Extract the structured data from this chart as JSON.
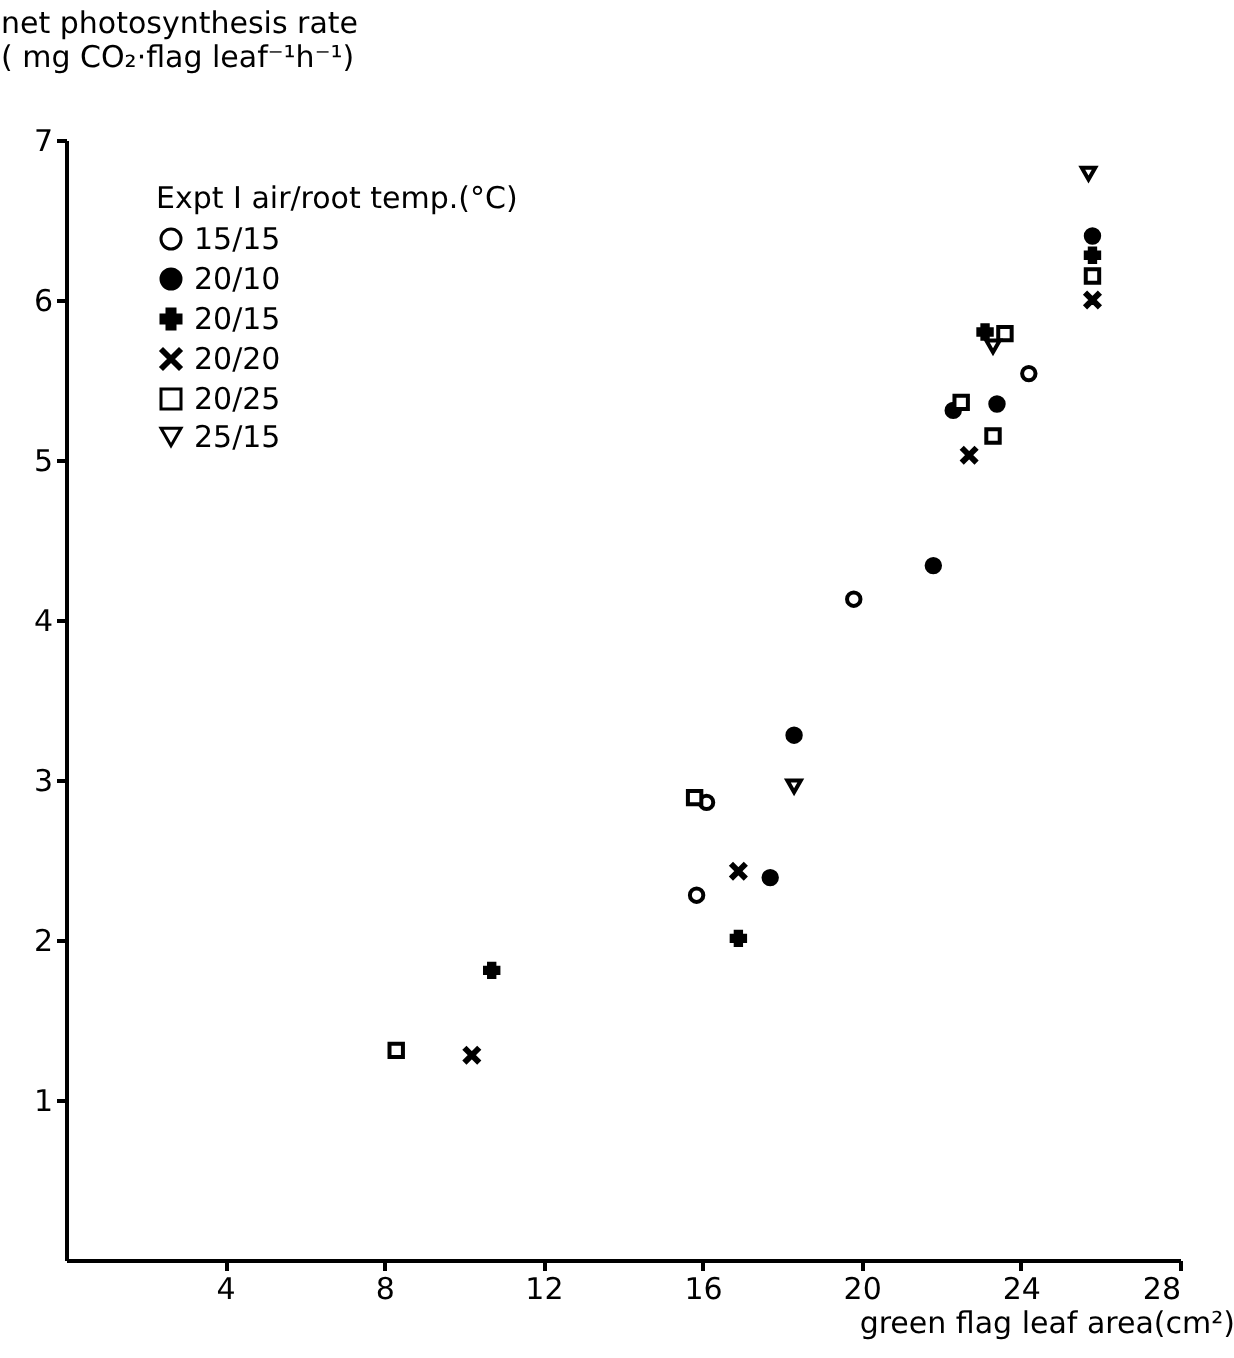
{
  "chart_data": {
    "type": "scatter",
    "xlabel": "green flag leaf area(cm²)",
    "ylabel": "net photosynthesis rate\n( mg CO₂·flag leaf⁻¹h⁻¹)",
    "legend_title": "Expt I air/root temp.(°C)",
    "legend": "top left",
    "grid": false,
    "xlim": [
      0,
      28
    ],
    "xticks": [
      4,
      8,
      12,
      16,
      20,
      24,
      28
    ],
    "ylim": [
      0,
      7
    ],
    "yticks": [
      1,
      2,
      3,
      4,
      5,
      6,
      7
    ],
    "series": [
      {
        "name": "15/15",
        "color": "#000000",
        "marker": "circle",
        "x": [
          15.85,
          16.1,
          19.8,
          24.2
        ],
        "values": [
          2.28,
          2.86,
          4.13,
          5.54
        ]
      },
      {
        "name": "20/10",
        "color": "#000000",
        "marker": "dot",
        "x": [
          17.7,
          18.3,
          21.8,
          22.3,
          23.4,
          25.8
        ],
        "values": [
          2.39,
          3.28,
          4.34,
          5.31,
          5.35,
          6.4
        ]
      },
      {
        "name": "20/15",
        "color": "#000000",
        "marker": "plus",
        "x": [
          10.7,
          16.9,
          23.1,
          25.8
        ],
        "values": [
          1.81,
          2.01,
          5.8,
          6.28
        ]
      },
      {
        "name": "20/20",
        "color": "#000000",
        "marker": "x",
        "x": [
          10.2,
          16.9,
          22.7,
          25.8
        ],
        "values": [
          1.28,
          2.43,
          5.03,
          6.0
        ]
      },
      {
        "name": "20/25",
        "color": "#000000",
        "marker": "square",
        "x": [
          8.3,
          15.8,
          22.5,
          23.3,
          23.6,
          25.8
        ],
        "values": [
          1.31,
          2.89,
          5.36,
          5.15,
          5.79,
          6.15
        ]
      },
      {
        "name": "25/15",
        "color": "#000000",
        "marker": "triangle-down",
        "x": [
          18.3,
          23.3,
          25.7
        ],
        "values": [
          2.96,
          5.71,
          6.79
        ]
      }
    ]
  }
}
